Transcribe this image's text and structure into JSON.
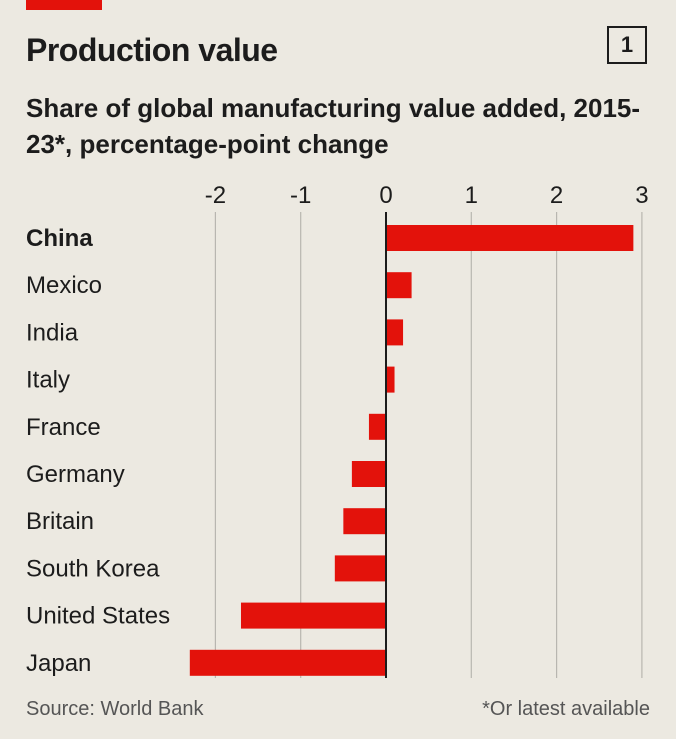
{
  "header": {
    "title": "Production value",
    "chart_number": "1",
    "subtitle": "Share of global manufacturing value added, 2015-23*, percentage-point change"
  },
  "footer": {
    "source": "Source: World Bank",
    "footnote": "*Or latest available"
  },
  "colors": {
    "bar": "#e3120b",
    "background": "#ece9e1",
    "grid": "#b8b6b0",
    "zero_line": "#1c1c1c"
  },
  "chart_data": {
    "type": "bar",
    "orientation": "horizontal",
    "title": "Production value",
    "subtitle": "Share of global manufacturing value added, 2015-23*, percentage-point change",
    "categories": [
      "China",
      "Mexico",
      "India",
      "Italy",
      "France",
      "Germany",
      "Britain",
      "South Korea",
      "United States",
      "Japan"
    ],
    "highlighted_category": "China",
    "values": [
      2.9,
      0.3,
      0.2,
      0.1,
      -0.2,
      -0.4,
      -0.5,
      -0.6,
      -1.7,
      -2.3
    ],
    "xlim": [
      -2.3,
      3
    ],
    "xticks": [
      -2,
      -1,
      0,
      1,
      2,
      3
    ],
    "xtick_labels": [
      "-2",
      "-1",
      "0",
      "1",
      "2",
      "3"
    ],
    "xaxis_position": "top",
    "grid": true
  }
}
